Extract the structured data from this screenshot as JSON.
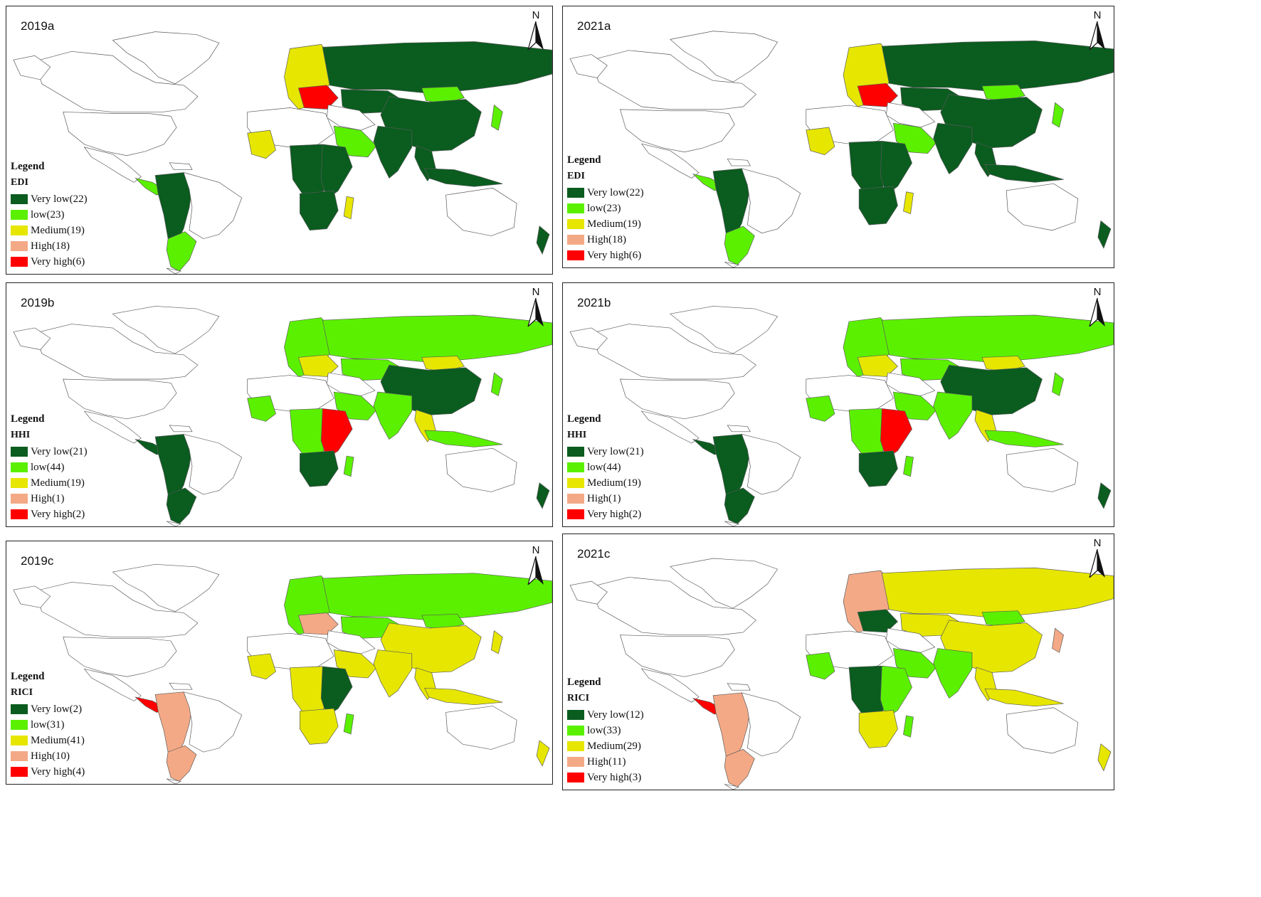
{
  "compass_letter": "N",
  "colors": {
    "very_low": "#0a5c1f",
    "low": "#5bf000",
    "medium": "#e6e600",
    "high": "#f4a986",
    "very_high": "#ff0000",
    "no_data": "#ffffff",
    "border": "#5a5a5a"
  },
  "panels": [
    {
      "title": "2019a",
      "legend_title": "Legend",
      "index_name": "EDI",
      "items": [
        {
          "label": "Very low(22)",
          "class": "very_low"
        },
        {
          "label": "low(23)",
          "class": "low"
        },
        {
          "label": "Medium(19)",
          "class": "medium"
        },
        {
          "label": "High(18)",
          "class": "high"
        },
        {
          "label": "Very high(6)",
          "class": "very_high"
        }
      ],
      "regions": {
        "russia": "very_low",
        "china": "very_low",
        "india": "very_low",
        "sea": "very_low",
        "indonesia": "very_low",
        "mongolia": "low",
        "kazakh": "very_low",
        "europe": "medium",
        "eastEU": "very_high",
        "arabia": "low",
        "westAf": "medium",
        "centralAf": "very_low",
        "eastAf": "very_low",
        "southAf": "very_low",
        "madagascar": "medium",
        "samWest": "very_low",
        "samSouth": "low",
        "centralAm": "low",
        "nz": "very_low",
        "japan": "low"
      }
    },
    {
      "title": "2021a",
      "legend_title": "Legend",
      "index_name": "EDI",
      "items": [
        {
          "label": "Very low(22)",
          "class": "very_low"
        },
        {
          "label": "low(23)",
          "class": "low"
        },
        {
          "label": "Medium(19)",
          "class": "medium"
        },
        {
          "label": "High(18)",
          "class": "high"
        },
        {
          "label": "Very high(6)",
          "class": "very_high"
        }
      ],
      "regions": {
        "russia": "very_low",
        "china": "very_low",
        "india": "very_low",
        "sea": "very_low",
        "indonesia": "very_low",
        "mongolia": "low",
        "kazakh": "very_low",
        "europe": "medium",
        "eastEU": "very_high",
        "arabia": "low",
        "westAf": "medium",
        "centralAf": "very_low",
        "eastAf": "very_low",
        "southAf": "very_low",
        "madagascar": "medium",
        "samWest": "very_low",
        "samSouth": "low",
        "centralAm": "low",
        "nz": "very_low",
        "japan": "low"
      }
    },
    {
      "title": "2019b",
      "legend_title": "Legend",
      "index_name": "HHI",
      "items": [
        {
          "label": "Very low(21)",
          "class": "very_low"
        },
        {
          "label": "low(44)",
          "class": "low"
        },
        {
          "label": "Medium(19)",
          "class": "medium"
        },
        {
          "label": "High(1)",
          "class": "high"
        },
        {
          "label": "Very high(2)",
          "class": "very_high"
        }
      ],
      "regions": {
        "russia": "low",
        "china": "very_low",
        "india": "low",
        "sea": "medium",
        "indonesia": "low",
        "mongolia": "medium",
        "kazakh": "low",
        "europe": "low",
        "eastEU": "medium",
        "arabia": "low",
        "westAf": "low",
        "centralAf": "low",
        "eastAf": "very_high",
        "southAf": "very_low",
        "madagascar": "low",
        "samWest": "very_low",
        "samSouth": "very_low",
        "centralAm": "very_low",
        "nz": "very_low",
        "japan": "low"
      }
    },
    {
      "title": "2021b",
      "legend_title": "Legend",
      "index_name": "HHI",
      "items": [
        {
          "label": "Very low(21)",
          "class": "very_low"
        },
        {
          "label": "low(44)",
          "class": "low"
        },
        {
          "label": "Medium(19)",
          "class": "medium"
        },
        {
          "label": "High(1)",
          "class": "high"
        },
        {
          "label": "Very high(2)",
          "class": "very_high"
        }
      ],
      "regions": {
        "russia": "low",
        "china": "very_low",
        "india": "low",
        "sea": "medium",
        "indonesia": "low",
        "mongolia": "medium",
        "kazakh": "low",
        "europe": "low",
        "eastEU": "medium",
        "arabia": "low",
        "westAf": "low",
        "centralAf": "low",
        "eastAf": "very_high",
        "southAf": "very_low",
        "madagascar": "low",
        "samWest": "very_low",
        "samSouth": "very_low",
        "centralAm": "very_low",
        "nz": "very_low",
        "japan": "low"
      }
    },
    {
      "title": "2019c",
      "legend_title": "Legend",
      "index_name": "RICI",
      "items": [
        {
          "label": "Very low(2)",
          "class": "very_low"
        },
        {
          "label": "low(31)",
          "class": "low"
        },
        {
          "label": "Medium(41)",
          "class": "medium"
        },
        {
          "label": "High(10)",
          "class": "high"
        },
        {
          "label": "Very high(4)",
          "class": "very_high"
        }
      ],
      "regions": {
        "russia": "low",
        "china": "medium",
        "india": "medium",
        "sea": "medium",
        "indonesia": "medium",
        "mongolia": "low",
        "kazakh": "low",
        "europe": "low",
        "eastEU": "high",
        "arabia": "medium",
        "westAf": "medium",
        "centralAf": "medium",
        "eastAf": "very_low",
        "southAf": "medium",
        "madagascar": "low",
        "samWest": "high",
        "samSouth": "high",
        "centralAm": "very_high",
        "nz": "medium",
        "japan": "medium"
      }
    },
    {
      "title": "2021c",
      "legend_title": "Legend",
      "index_name": "RICI",
      "items": [
        {
          "label": "Very low(12)",
          "class": "very_low"
        },
        {
          "label": "low(33)",
          "class": "low"
        },
        {
          "label": "Medium(29)",
          "class": "medium"
        },
        {
          "label": "High(11)",
          "class": "high"
        },
        {
          "label": "Very high(3)",
          "class": "very_high"
        }
      ],
      "regions": {
        "russia": "medium",
        "china": "medium",
        "india": "low",
        "sea": "medium",
        "indonesia": "medium",
        "mongolia": "low",
        "kazakh": "medium",
        "europe": "high",
        "eastEU": "very_low",
        "arabia": "low",
        "westAf": "low",
        "centralAf": "very_low",
        "eastAf": "low",
        "southAf": "medium",
        "madagascar": "low",
        "samWest": "high",
        "samSouth": "high",
        "centralAm": "very_high",
        "nz": "medium",
        "japan": "high"
      }
    }
  ]
}
